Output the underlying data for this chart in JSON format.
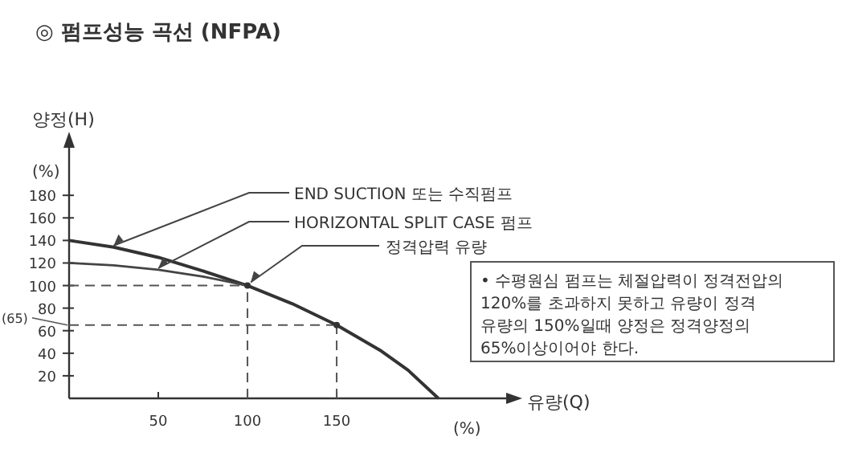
{
  "chart_data": {
    "type": "line",
    "title": "◎ 펌프성능  곡선 (NFPA)",
    "ylabel": "양정(H)",
    "xlabel": "유량(Q)",
    "annotations": [
      "(%)",
      "(%)",
      {
        "text": "정격압력 유량",
        "x": 100,
        "y": 100
      },
      "• 수평원심 펌프는 체절압력이 정격전압의\n120%를 초과하지 못하고 유량이 정격\n유량의 150%일때 양정은 정격양정의\n65%이상이어야 한다."
    ],
    "series": [
      {
        "name": "END SUCTION 또는 수직펌프",
        "color": "#333333",
        "x": [
          0,
          25,
          50,
          75,
          100,
          125,
          150,
          175,
          190,
          207
        ],
        "values": [
          140,
          134,
          125,
          113,
          100,
          84,
          65,
          42,
          25,
          0
        ]
      },
      {
        "name": "HORIZONTAL SPLIT CASE 펌프",
        "color": "#444444",
        "x": [
          0,
          25,
          50,
          75,
          100
        ],
        "values": [
          120,
          118,
          114,
          108,
          100
        ]
      },
      {
        "type": "scatter",
        "color": "#333333",
        "x": [
          100,
          150
        ],
        "values": [
          100,
          65
        ]
      }
    ],
    "xlim": [
      0,
      245
    ],
    "ylim": [
      0,
      225
    ],
    "xticks": [
      50,
      100,
      150
    ],
    "yticks": [
      20,
      40,
      60,
      80,
      100,
      120,
      140,
      160,
      180
    ],
    "ref_lines": [
      {
        "axis": "y",
        "value": 100
      },
      {
        "axis": "y",
        "value": 65,
        "label": "(65)"
      },
      {
        "axis": "x",
        "value": 100
      },
      {
        "axis": "x",
        "value": 150
      }
    ],
    "grid": false,
    "line_style": "solid"
  }
}
